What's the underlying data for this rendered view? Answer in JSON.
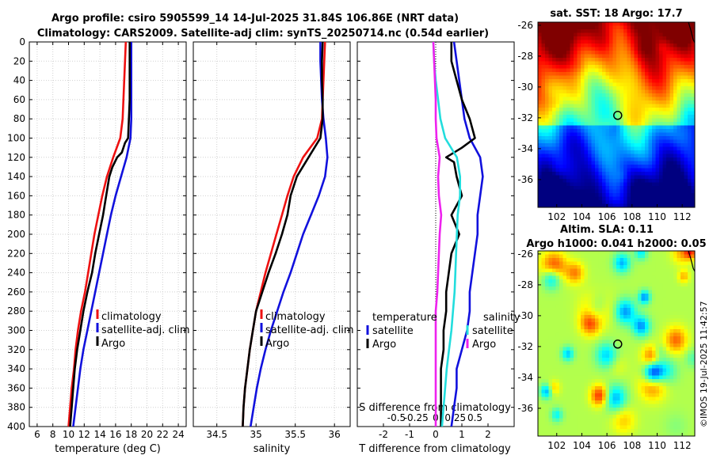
{
  "title_line1": "Argo profile: csiro 5905599_14 14-Jul-2025 31.84S 106.86E (NRT data)",
  "title_line2": "Climatology: CARS2009. Satellite-adj clim: synTS_20250714.nc (0.54d earlier)",
  "copyright": "©IMOS 19-Jul-2025 11:42:57",
  "colors": {
    "climatology": "#ee1111",
    "satellite": "#1111dd",
    "argo": "#000000",
    "s_satellite": "#22dddd",
    "s_argo": "#ee22ee"
  },
  "chart_data": [
    {
      "type": "line",
      "id": "temperature",
      "xlabel": "temperature (deg C)",
      "ylabel": "",
      "xlim": [
        5,
        25
      ],
      "ylim": [
        400,
        0
      ],
      "xticks": [
        "6",
        "8",
        "10",
        "12",
        "14",
        "16",
        "18",
        "20",
        "22",
        "24"
      ],
      "yticks": [
        "0",
        "20",
        "40",
        "60",
        "80",
        "100",
        "120",
        "140",
        "160",
        "180",
        "200",
        "220",
        "240",
        "260",
        "280",
        "300",
        "320",
        "340",
        "360",
        "380",
        "400"
      ],
      "grid": true,
      "legend": {
        "position": "bottom-right",
        "entries": [
          "climatology",
          "satellite-adj. clim",
          "Argo"
        ]
      },
      "series": [
        {
          "name": "climatology",
          "depth": [
            0,
            20,
            40,
            60,
            80,
            100,
            120,
            140,
            160,
            180,
            200,
            220,
            240,
            260,
            280,
            300,
            320,
            340,
            360,
            380,
            400
          ],
          "values": [
            17.3,
            17.2,
            17.1,
            17.0,
            16.9,
            16.6,
            15.7,
            14.9,
            14.3,
            13.8,
            13.3,
            12.9,
            12.5,
            12.1,
            11.6,
            11.2,
            10.9,
            10.7,
            10.4,
            10.2,
            10.0
          ]
        },
        {
          "name": "satellite-adj. clim",
          "depth": [
            0,
            20,
            40,
            60,
            80,
            100,
            120,
            140,
            160,
            180,
            200,
            220,
            240,
            260,
            280,
            300,
            320,
            340,
            360,
            380,
            400
          ],
          "values": [
            18.0,
            18.0,
            18.0,
            18.0,
            18.0,
            17.9,
            17.4,
            16.7,
            16.0,
            15.4,
            14.9,
            14.4,
            13.9,
            13.4,
            12.9,
            12.4,
            11.9,
            11.5,
            11.2,
            10.9,
            10.6
          ]
        },
        {
          "name": "Argo",
          "depth": [
            0,
            20,
            40,
            60,
            80,
            100,
            105,
            115,
            120,
            130,
            140,
            160,
            180,
            200,
            220,
            240,
            260,
            280,
            300,
            320,
            340,
            360,
            380,
            400
          ],
          "values": [
            17.8,
            17.8,
            17.8,
            17.8,
            17.7,
            17.6,
            17.2,
            16.8,
            16.2,
            15.6,
            15.2,
            14.8,
            14.4,
            13.9,
            13.4,
            13.0,
            12.4,
            11.9,
            11.5,
            11.1,
            10.8,
            10.6,
            10.4,
            10.2
          ]
        }
      ]
    },
    {
      "type": "line",
      "id": "salinity",
      "xlabel": "salinity",
      "ylabel": "",
      "xlim": [
        34.2,
        36.2
      ],
      "ylim": [
        400,
        0
      ],
      "xticks": [
        "34.5",
        "35",
        "35.5",
        "36"
      ],
      "grid": true,
      "legend": {
        "position": "bottom-right",
        "entries": [
          "climatology",
          "satellite-adj. clim",
          "Argo"
        ]
      },
      "series": [
        {
          "name": "climatology",
          "depth": [
            0,
            20,
            40,
            60,
            80,
            100,
            120,
            140,
            160,
            180,
            200,
            220,
            240,
            260,
            280,
            300,
            320,
            340,
            360,
            380,
            400
          ],
          "values": [
            35.88,
            35.87,
            35.86,
            35.85,
            35.84,
            35.78,
            35.6,
            35.48,
            35.4,
            35.33,
            35.26,
            35.19,
            35.12,
            35.06,
            35.0,
            34.96,
            34.92,
            34.89,
            34.86,
            34.84,
            34.83
          ]
        },
        {
          "name": "satellite-adj. clim",
          "depth": [
            0,
            20,
            40,
            60,
            80,
            100,
            120,
            140,
            160,
            180,
            200,
            220,
            240,
            260,
            280,
            300,
            320,
            340,
            360,
            380,
            400
          ],
          "values": [
            35.82,
            35.82,
            35.83,
            35.84,
            35.86,
            35.89,
            35.91,
            35.88,
            35.8,
            35.7,
            35.6,
            35.52,
            35.44,
            35.35,
            35.27,
            35.19,
            35.12,
            35.06,
            35.01,
            34.97,
            34.93
          ]
        },
        {
          "name": "Argo",
          "depth": [
            0,
            20,
            40,
            60,
            80,
            100,
            120,
            140,
            160,
            180,
            200,
            220,
            240,
            260,
            280,
            300,
            320,
            340,
            360,
            380,
            400
          ],
          "values": [
            35.85,
            35.84,
            35.84,
            35.85,
            35.85,
            35.82,
            35.67,
            35.52,
            35.44,
            35.4,
            35.33,
            35.25,
            35.16,
            35.08,
            35.0,
            34.96,
            34.92,
            34.89,
            34.86,
            34.84,
            34.83
          ]
        }
      ]
    },
    {
      "type": "line",
      "id": "differences",
      "xlabel": "T difference from climatology",
      "x2label": "S difference from climatology",
      "xlim": [
        -3,
        3
      ],
      "x2lim": [
        -1,
        1
      ],
      "ylim": [
        400,
        0
      ],
      "xticks": [
        "-2",
        "-1",
        "0",
        "1",
        "2"
      ],
      "x2ticks": [
        "-0.5",
        "-0.25",
        "0",
        "0.25",
        "0.5"
      ],
      "zero_line": "dotted",
      "legend_left": {
        "title": "temperature",
        "entries": [
          "satellite",
          "Argo"
        ]
      },
      "legend_right": {
        "title": "salinity",
        "entries": [
          "satellite",
          "Argo"
        ]
      },
      "series": [
        {
          "name": "temperature satellite",
          "axis": "T",
          "depth": [
            0,
            20,
            40,
            60,
            80,
            100,
            120,
            140,
            160,
            180,
            200,
            220,
            240,
            260,
            280,
            300,
            320,
            340,
            360,
            380,
            400
          ],
          "values": [
            0.7,
            0.8,
            0.9,
            1.0,
            1.1,
            1.3,
            1.7,
            1.8,
            1.7,
            1.6,
            1.6,
            1.5,
            1.4,
            1.3,
            1.3,
            1.2,
            1.0,
            0.8,
            0.8,
            0.7,
            0.6
          ]
        },
        {
          "name": "temperature Argo",
          "axis": "T",
          "depth": [
            0,
            20,
            40,
            60,
            80,
            100,
            110,
            120,
            125,
            140,
            160,
            180,
            200,
            220,
            240,
            260,
            280,
            300,
            320,
            340,
            360,
            380,
            400
          ],
          "values": [
            0.6,
            0.6,
            0.8,
            1.0,
            1.3,
            1.5,
            1.0,
            0.4,
            0.7,
            0.8,
            1.0,
            0.6,
            0.9,
            0.6,
            0.5,
            0.4,
            0.4,
            0.3,
            0.3,
            0.2,
            0.2,
            0.2,
            0.2
          ]
        },
        {
          "name": "salinity satellite",
          "axis": "S",
          "depth": [
            0,
            20,
            40,
            60,
            80,
            100,
            120,
            140,
            160,
            180,
            200,
            220,
            240,
            260,
            280,
            300,
            320,
            340,
            360,
            380,
            400
          ],
          "values": [
            -0.03,
            -0.02,
            0.0,
            0.03,
            0.06,
            0.12,
            0.27,
            0.31,
            0.31,
            0.28,
            0.27,
            0.26,
            0.25,
            0.24,
            0.22,
            0.2,
            0.17,
            0.14,
            0.12,
            0.1,
            0.08
          ]
        },
        {
          "name": "salinity Argo",
          "axis": "S",
          "depth": [
            0,
            20,
            40,
            60,
            80,
            100,
            120,
            140,
            160,
            180,
            200,
            220,
            240,
            260,
            280,
            300,
            320,
            340,
            360,
            380,
            400
          ],
          "values": [
            -0.03,
            -0.02,
            -0.01,
            0.0,
            0.0,
            0.01,
            0.05,
            0.03,
            0.04,
            0.07,
            0.05,
            0.04,
            0.03,
            0.02,
            0.0,
            0.0,
            0.0,
            0.0,
            0.0,
            0.0,
            0.0
          ]
        }
      ]
    },
    {
      "type": "heatmap",
      "id": "sst_map",
      "title": "sat. SST: 18 Argo: 17.7",
      "xticks": [
        "102",
        "104",
        "106",
        "108",
        "110",
        "112"
      ],
      "yticks": [
        "-26",
        "-28",
        "-30",
        "-32",
        "-34",
        "-36"
      ],
      "xlim": [
        100.5,
        113
      ],
      "ylim": [
        -37.8,
        -25.8
      ],
      "marker": {
        "lon": 106.86,
        "lat": -31.84
      }
    },
    {
      "type": "heatmap",
      "id": "sla_map",
      "title_line1": "Altim. SLA: 0.11",
      "title_line2": "Argo h1000: 0.041 h2000: 0.05",
      "xticks": [
        "102",
        "104",
        "106",
        "108",
        "110",
        "112"
      ],
      "yticks": [
        "-26",
        "-28",
        "-30",
        "-32",
        "-34",
        "-36"
      ],
      "xlim": [
        100.5,
        113
      ],
      "ylim": [
        -37.8,
        -25.8
      ],
      "marker": {
        "lon": 106.86,
        "lat": -31.84
      }
    }
  ]
}
